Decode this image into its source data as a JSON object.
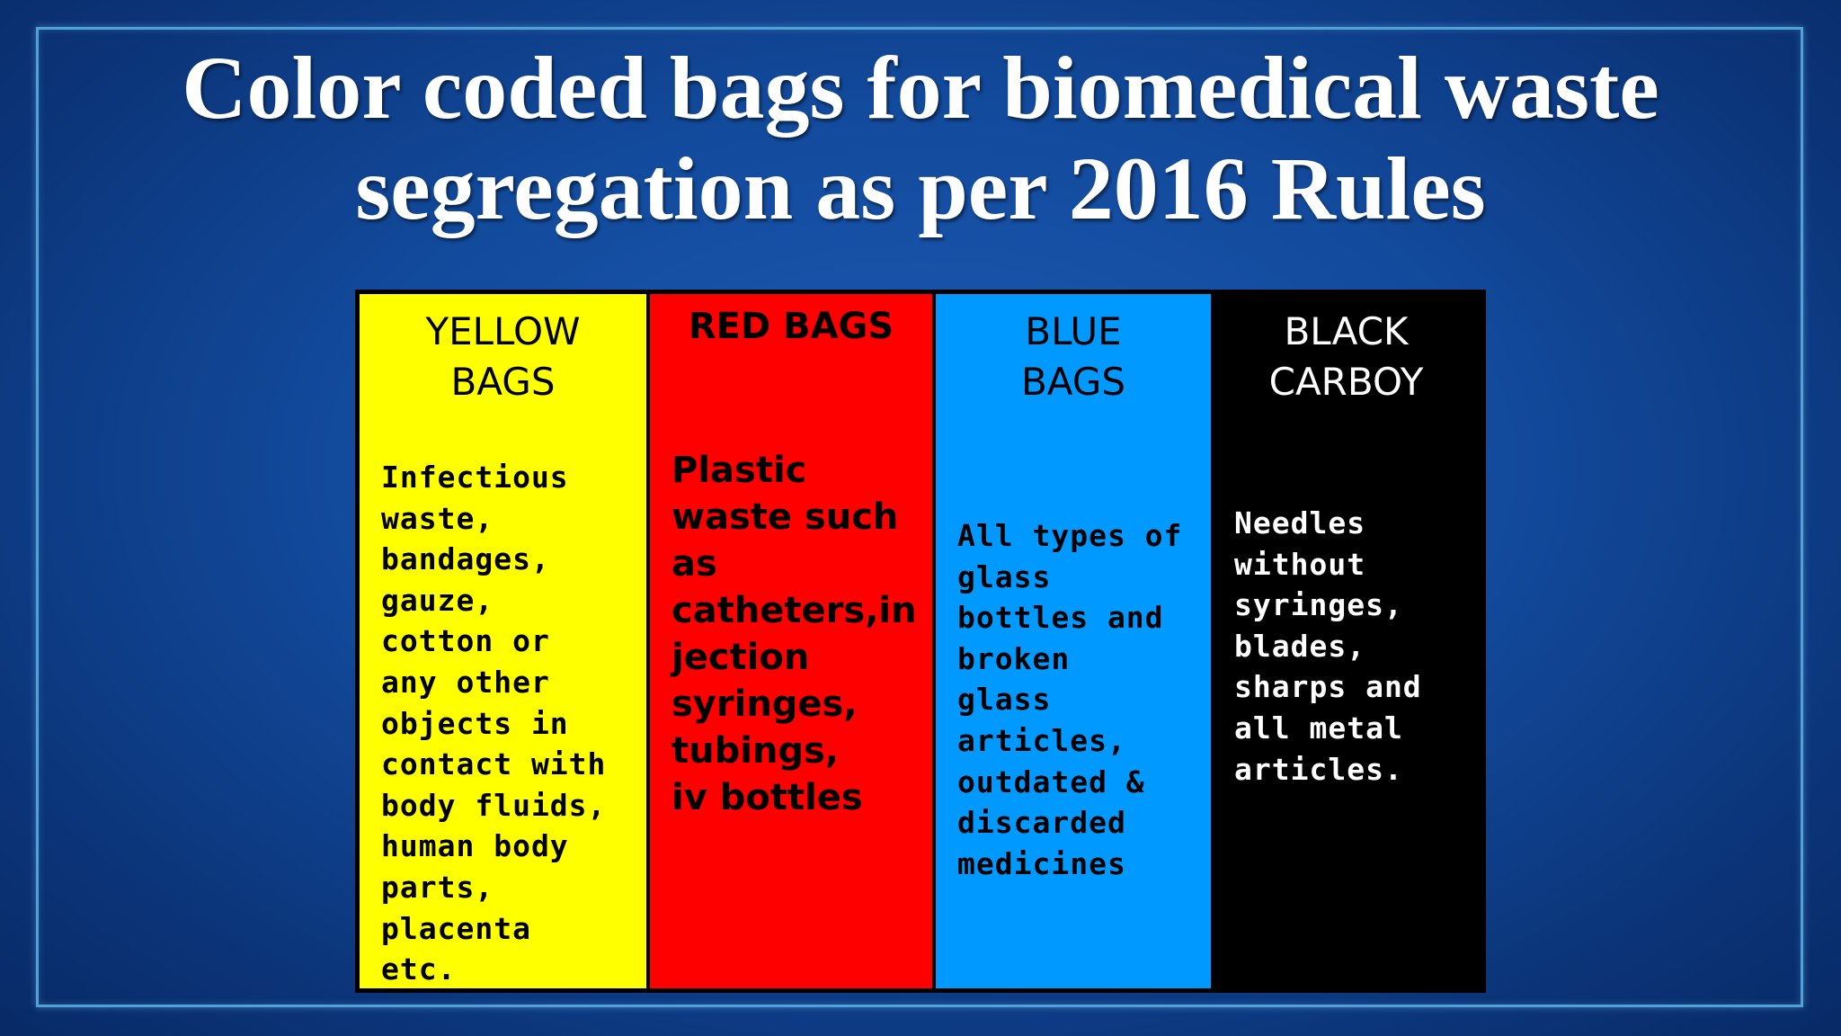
{
  "title": {
    "line1": "Color coded bags for biomedical waste",
    "line2": "segregation as per 2016 Rules"
  },
  "colors": {
    "yellow": "#ffff00",
    "red": "#ff0000",
    "blue": "#0099ff",
    "black": "#000000"
  },
  "columns": [
    {
      "heading": [
        "YELLOW",
        "BAGS"
      ],
      "lines": [
        "Infectious",
        "waste,",
        "bandages,",
        "gauze,",
        "cotton or",
        "any other",
        "objects in",
        "contact with",
        "body fluids,",
        "human body",
        "parts,",
        "placenta",
        "etc."
      ]
    },
    {
      "heading": [
        "RED BAGS"
      ],
      "lines": [
        "Plastic",
        "waste such",
        "as",
        "catheters,in",
        "jection",
        "syringes,",
        "tubings,",
        "iv bottles"
      ]
    },
    {
      "heading": [
        "BLUE",
        "BAGS"
      ],
      "lines": [
        "All types of",
        "glass",
        "bottles and",
        "broken",
        "glass",
        "articles,",
        "outdated &",
        "discarded",
        "medicines"
      ]
    },
    {
      "heading": [
        "BLACK",
        "CARBOY"
      ],
      "lines": [
        "Needles",
        "without",
        "syringes,",
        "blades,",
        "sharps and",
        "all metal",
        "articles."
      ]
    }
  ]
}
